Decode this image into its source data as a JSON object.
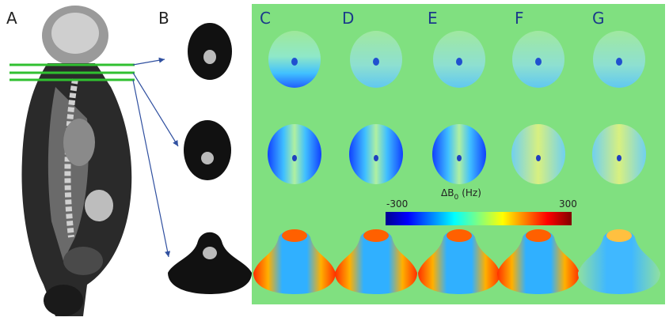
{
  "panels": {
    "A": "A",
    "B": "B",
    "C": "C",
    "D": "D",
    "E": "E",
    "F": "F",
    "G": "G"
  },
  "colorbar": {
    "symbol": "ΔB",
    "subscript": "0",
    "unit": "(Hz)",
    "min_label": "-300",
    "max_label": "300"
  }
}
